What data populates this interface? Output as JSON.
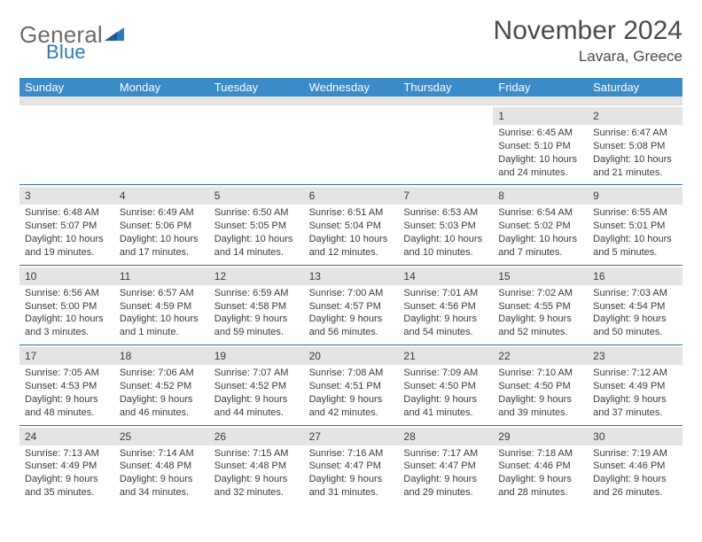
{
  "logo": {
    "text_a": "General",
    "text_b": "Blue",
    "color_gray": "#6b6b6b",
    "color_blue": "#2b7bbd"
  },
  "header": {
    "title": "November 2024",
    "location": "Lavara, Greece"
  },
  "dayNames": [
    "Sunday",
    "Monday",
    "Tuesday",
    "Wednesday",
    "Thursday",
    "Friday",
    "Saturday"
  ],
  "styling": {
    "header_bg": "#3b8bc9",
    "header_text": "#ffffff",
    "daynum_bg": "#e4e4e4",
    "week_divider": "#2e6ea5",
    "text_color": "#3a3a3a",
    "title_color": "#4a4a4a",
    "page_bg": "#ffffff",
    "cell_font_size": 11,
    "daynum_font_size": 12,
    "dayhead_font_size": 13
  },
  "weeks": [
    [
      null,
      null,
      null,
      null,
      null,
      {
        "n": "1",
        "sr": "Sunrise: 6:45 AM",
        "ss": "Sunset: 5:10 PM",
        "d1": "Daylight: 10 hours",
        "d2": "and 24 minutes."
      },
      {
        "n": "2",
        "sr": "Sunrise: 6:47 AM",
        "ss": "Sunset: 5:08 PM",
        "d1": "Daylight: 10 hours",
        "d2": "and 21 minutes."
      }
    ],
    [
      {
        "n": "3",
        "sr": "Sunrise: 6:48 AM",
        "ss": "Sunset: 5:07 PM",
        "d1": "Daylight: 10 hours",
        "d2": "and 19 minutes."
      },
      {
        "n": "4",
        "sr": "Sunrise: 6:49 AM",
        "ss": "Sunset: 5:06 PM",
        "d1": "Daylight: 10 hours",
        "d2": "and 17 minutes."
      },
      {
        "n": "5",
        "sr": "Sunrise: 6:50 AM",
        "ss": "Sunset: 5:05 PM",
        "d1": "Daylight: 10 hours",
        "d2": "and 14 minutes."
      },
      {
        "n": "6",
        "sr": "Sunrise: 6:51 AM",
        "ss": "Sunset: 5:04 PM",
        "d1": "Daylight: 10 hours",
        "d2": "and 12 minutes."
      },
      {
        "n": "7",
        "sr": "Sunrise: 6:53 AM",
        "ss": "Sunset: 5:03 PM",
        "d1": "Daylight: 10 hours",
        "d2": "and 10 minutes."
      },
      {
        "n": "8",
        "sr": "Sunrise: 6:54 AM",
        "ss": "Sunset: 5:02 PM",
        "d1": "Daylight: 10 hours",
        "d2": "and 7 minutes."
      },
      {
        "n": "9",
        "sr": "Sunrise: 6:55 AM",
        "ss": "Sunset: 5:01 PM",
        "d1": "Daylight: 10 hours",
        "d2": "and 5 minutes."
      }
    ],
    [
      {
        "n": "10",
        "sr": "Sunrise: 6:56 AM",
        "ss": "Sunset: 5:00 PM",
        "d1": "Daylight: 10 hours",
        "d2": "and 3 minutes."
      },
      {
        "n": "11",
        "sr": "Sunrise: 6:57 AM",
        "ss": "Sunset: 4:59 PM",
        "d1": "Daylight: 10 hours",
        "d2": "and 1 minute."
      },
      {
        "n": "12",
        "sr": "Sunrise: 6:59 AM",
        "ss": "Sunset: 4:58 PM",
        "d1": "Daylight: 9 hours",
        "d2": "and 59 minutes."
      },
      {
        "n": "13",
        "sr": "Sunrise: 7:00 AM",
        "ss": "Sunset: 4:57 PM",
        "d1": "Daylight: 9 hours",
        "d2": "and 56 minutes."
      },
      {
        "n": "14",
        "sr": "Sunrise: 7:01 AM",
        "ss": "Sunset: 4:56 PM",
        "d1": "Daylight: 9 hours",
        "d2": "and 54 minutes."
      },
      {
        "n": "15",
        "sr": "Sunrise: 7:02 AM",
        "ss": "Sunset: 4:55 PM",
        "d1": "Daylight: 9 hours",
        "d2": "and 52 minutes."
      },
      {
        "n": "16",
        "sr": "Sunrise: 7:03 AM",
        "ss": "Sunset: 4:54 PM",
        "d1": "Daylight: 9 hours",
        "d2": "and 50 minutes."
      }
    ],
    [
      {
        "n": "17",
        "sr": "Sunrise: 7:05 AM",
        "ss": "Sunset: 4:53 PM",
        "d1": "Daylight: 9 hours",
        "d2": "and 48 minutes."
      },
      {
        "n": "18",
        "sr": "Sunrise: 7:06 AM",
        "ss": "Sunset: 4:52 PM",
        "d1": "Daylight: 9 hours",
        "d2": "and 46 minutes."
      },
      {
        "n": "19",
        "sr": "Sunrise: 7:07 AM",
        "ss": "Sunset: 4:52 PM",
        "d1": "Daylight: 9 hours",
        "d2": "and 44 minutes."
      },
      {
        "n": "20",
        "sr": "Sunrise: 7:08 AM",
        "ss": "Sunset: 4:51 PM",
        "d1": "Daylight: 9 hours",
        "d2": "and 42 minutes."
      },
      {
        "n": "21",
        "sr": "Sunrise: 7:09 AM",
        "ss": "Sunset: 4:50 PM",
        "d1": "Daylight: 9 hours",
        "d2": "and 41 minutes."
      },
      {
        "n": "22",
        "sr": "Sunrise: 7:10 AM",
        "ss": "Sunset: 4:50 PM",
        "d1": "Daylight: 9 hours",
        "d2": "and 39 minutes."
      },
      {
        "n": "23",
        "sr": "Sunrise: 7:12 AM",
        "ss": "Sunset: 4:49 PM",
        "d1": "Daylight: 9 hours",
        "d2": "and 37 minutes."
      }
    ],
    [
      {
        "n": "24",
        "sr": "Sunrise: 7:13 AM",
        "ss": "Sunset: 4:49 PM",
        "d1": "Daylight: 9 hours",
        "d2": "and 35 minutes."
      },
      {
        "n": "25",
        "sr": "Sunrise: 7:14 AM",
        "ss": "Sunset: 4:48 PM",
        "d1": "Daylight: 9 hours",
        "d2": "and 34 minutes."
      },
      {
        "n": "26",
        "sr": "Sunrise: 7:15 AM",
        "ss": "Sunset: 4:48 PM",
        "d1": "Daylight: 9 hours",
        "d2": "and 32 minutes."
      },
      {
        "n": "27",
        "sr": "Sunrise: 7:16 AM",
        "ss": "Sunset: 4:47 PM",
        "d1": "Daylight: 9 hours",
        "d2": "and 31 minutes."
      },
      {
        "n": "28",
        "sr": "Sunrise: 7:17 AM",
        "ss": "Sunset: 4:47 PM",
        "d1": "Daylight: 9 hours",
        "d2": "and 29 minutes."
      },
      {
        "n": "29",
        "sr": "Sunrise: 7:18 AM",
        "ss": "Sunset: 4:46 PM",
        "d1": "Daylight: 9 hours",
        "d2": "and 28 minutes."
      },
      {
        "n": "30",
        "sr": "Sunrise: 7:19 AM",
        "ss": "Sunset: 4:46 PM",
        "d1": "Daylight: 9 hours",
        "d2": "and 26 minutes."
      }
    ]
  ]
}
